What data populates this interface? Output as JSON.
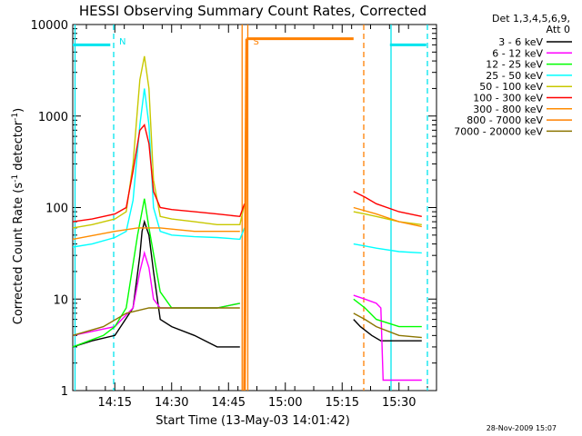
{
  "chart_data": {
    "type": "line",
    "title": "HESSI Observing Summary Count Rates, Corrected",
    "xlabel": "Start Time (13-May-03 14:01:42)",
    "ylabel_main": "Corrected Count Rate (s",
    "ylabel_sup1": "-1",
    "ylabel_mid": " detector",
    "ylabel_sup2": "-1",
    "ylabel_end": ")",
    "yscale": "log",
    "ylim": [
      1,
      10000
    ],
    "xlim": [
      14.065,
      15.665
    ],
    "x_unit": "hours UT",
    "x_ticks": [
      {
        "t": 14.25,
        "label": "14:15"
      },
      {
        "t": 14.5,
        "label": "14:30"
      },
      {
        "t": 14.75,
        "label": "14:45"
      },
      {
        "t": 15.0,
        "label": "15:00"
      },
      {
        "t": 15.25,
        "label": "15:15"
      },
      {
        "t": 15.5,
        "label": "15:30"
      }
    ],
    "y_ticks": [
      {
        "v": 1,
        "label": "1"
      },
      {
        "v": 10,
        "label": "10"
      },
      {
        "v": 100,
        "label": "100"
      },
      {
        "v": 1000,
        "label": "1000"
      },
      {
        "v": 10000,
        "label": "10000"
      }
    ],
    "legend_title": [
      "Det 1,3,4,5,6,9,",
      "Att 0"
    ],
    "legend_position": "right",
    "series": [
      {
        "name": "3 - 6 keV",
        "color": "#000000",
        "segments": [
          {
            "t": [
              14.065,
              14.15,
              14.25,
              14.33,
              14.36,
              14.37,
              14.38,
              14.4,
              14.42,
              14.45,
              14.5,
              14.6,
              14.7,
              14.8
            ],
            "y": [
              3,
              3.5,
              4,
              8,
              30,
              55,
              70,
              50,
              20,
              6,
              5,
              4,
              3,
              3
            ]
          },
          {
            "t": [
              15.3,
              15.33,
              15.38,
              15.42,
              15.5,
              15.6
            ],
            "y": [
              6,
              5,
              4,
              3.5,
              3.5,
              3.5
            ]
          }
        ]
      },
      {
        "name": "6 - 12 keV",
        "color": "#ff00ff",
        "segments": [
          {
            "t": [
              14.065,
              14.25,
              14.33,
              14.36,
              14.38,
              14.4,
              14.42,
              14.45,
              14.5,
              14.6,
              14.7,
              14.8
            ],
            "y": [
              4,
              5,
              8,
              20,
              32,
              22,
              10,
              8,
              8,
              8,
              8,
              9
            ]
          },
          {
            "t": [
              15.3,
              15.35,
              15.4,
              15.42,
              15.43,
              15.6
            ],
            "y": [
              11,
              10,
              9,
              8,
              1.3,
              1.3
            ]
          }
        ]
      },
      {
        "name": "12 - 25 keV",
        "color": "#00ff00",
        "segments": [
          {
            "t": [
              14.065,
              14.2,
              14.25,
              14.3,
              14.35,
              14.38,
              14.4,
              14.45,
              14.5,
              14.6,
              14.7,
              14.8
            ],
            "y": [
              3,
              4,
              5,
              8,
              50,
              125,
              60,
              12,
              8,
              8,
              8,
              9
            ]
          },
          {
            "t": [
              15.3,
              15.35,
              15.4,
              15.5,
              15.6
            ],
            "y": [
              10,
              8,
              6,
              5,
              5
            ]
          }
        ]
      },
      {
        "name": "25 - 50 keV",
        "color": "#00ffff",
        "segments": [
          {
            "t": [
              14.065,
              14.15,
              14.25,
              14.3,
              14.33,
              14.36,
              14.38,
              14.4,
              14.42,
              14.45,
              14.5,
              14.6,
              14.7,
              14.8,
              14.82
            ],
            "y": [
              37,
              40,
              47,
              55,
              120,
              800,
              2000,
              800,
              100,
              55,
              50,
              48,
              47,
              45,
              60
            ]
          },
          {
            "t": [
              15.3,
              15.35,
              15.4,
              15.5,
              15.6
            ],
            "y": [
              40,
              38,
              36,
              33,
              32
            ]
          }
        ]
      },
      {
        "name": "50 - 100 keV",
        "color": "#c8c800",
        "segments": [
          {
            "t": [
              14.065,
              14.15,
              14.25,
              14.3,
              14.33,
              14.36,
              14.38,
              14.4,
              14.42,
              14.45,
              14.5,
              14.6,
              14.7,
              14.8,
              14.82
            ],
            "y": [
              60,
              65,
              75,
              90,
              300,
              2500,
              4500,
              2000,
              200,
              80,
              75,
              70,
              65,
              65,
              110
            ]
          },
          {
            "t": [
              15.3,
              15.35,
              15.4,
              15.5,
              15.6
            ],
            "y": [
              90,
              85,
              80,
              70,
              65
            ]
          }
        ]
      },
      {
        "name": "100 - 300 keV",
        "color": "#ff0000",
        "segments": [
          {
            "t": [
              14.065,
              14.15,
              14.25,
              14.3,
              14.33,
              14.36,
              14.38,
              14.4,
              14.42,
              14.45,
              14.5,
              14.6,
              14.7,
              14.8,
              14.82
            ],
            "y": [
              70,
              75,
              85,
              100,
              250,
              700,
              800,
              500,
              150,
              100,
              95,
              90,
              85,
              80,
              110
            ]
          },
          {
            "t": [
              15.3,
              15.35,
              15.4,
              15.5,
              15.6
            ],
            "y": [
              150,
              130,
              110,
              90,
              80
            ]
          }
        ]
      },
      {
        "name": "300 - 800 keV",
        "color": "#ff8c00",
        "segments": [
          {
            "t": [
              14.065,
              14.25,
              14.35,
              14.45,
              14.6,
              14.8
            ],
            "y": [
              45,
              55,
              60,
              60,
              55,
              55
            ]
          },
          {
            "t": [
              15.3,
              15.4,
              15.5,
              15.6
            ],
            "y": [
              100,
              85,
              70,
              62
            ]
          }
        ]
      },
      {
        "name": "800 - 7000 keV",
        "color": "#ff8000",
        "segments": [
          {
            "t": [
              14.82,
              14.83
            ],
            "y": [
              1,
              7000
            ]
          },
          {
            "t": [
              14.83,
              15.3
            ],
            "y": [
              7000,
              7000
            ]
          }
        ]
      },
      {
        "name": "7000 - 20000 keV",
        "color": "#8b7500",
        "segments": [
          {
            "t": [
              14.065,
              14.2,
              14.3,
              14.4,
              14.5,
              14.6,
              14.7,
              14.8
            ],
            "y": [
              4,
              5,
              7,
              8,
              8,
              8,
              8,
              8
            ]
          },
          {
            "t": [
              15.3,
              15.35,
              15.4,
              15.5,
              15.6
            ],
            "y": [
              7,
              6,
              5,
              4,
              3.8
            ]
          }
        ]
      }
    ],
    "extra_lines": [
      {
        "color": "#00e5ee",
        "t": [
          14.065,
          14.23
        ],
        "y": [
          6000,
          6000
        ]
      },
      {
        "color": "#00e5ee",
        "t": [
          15.46,
          15.62
        ],
        "y": [
          6000,
          6000
        ]
      }
    ],
    "markers": [
      {
        "t": 14.075,
        "color": "#00e5ee",
        "style": "solid"
      },
      {
        "t": 14.245,
        "color": "#00e5ee",
        "style": "dash",
        "label": "N"
      },
      {
        "t": 14.81,
        "color": "#ff8000",
        "style": "solid"
      },
      {
        "t": 14.835,
        "color": "#ff8000",
        "style": "solid",
        "label": "S"
      },
      {
        "t": 15.345,
        "color": "#ff8000",
        "style": "dash"
      },
      {
        "t": 15.465,
        "color": "#00e5ee",
        "style": "solid"
      },
      {
        "t": 15.625,
        "color": "#00e5ee",
        "style": "dash"
      }
    ]
  },
  "footer_timestamp": "28-Nov-2009 15:07"
}
